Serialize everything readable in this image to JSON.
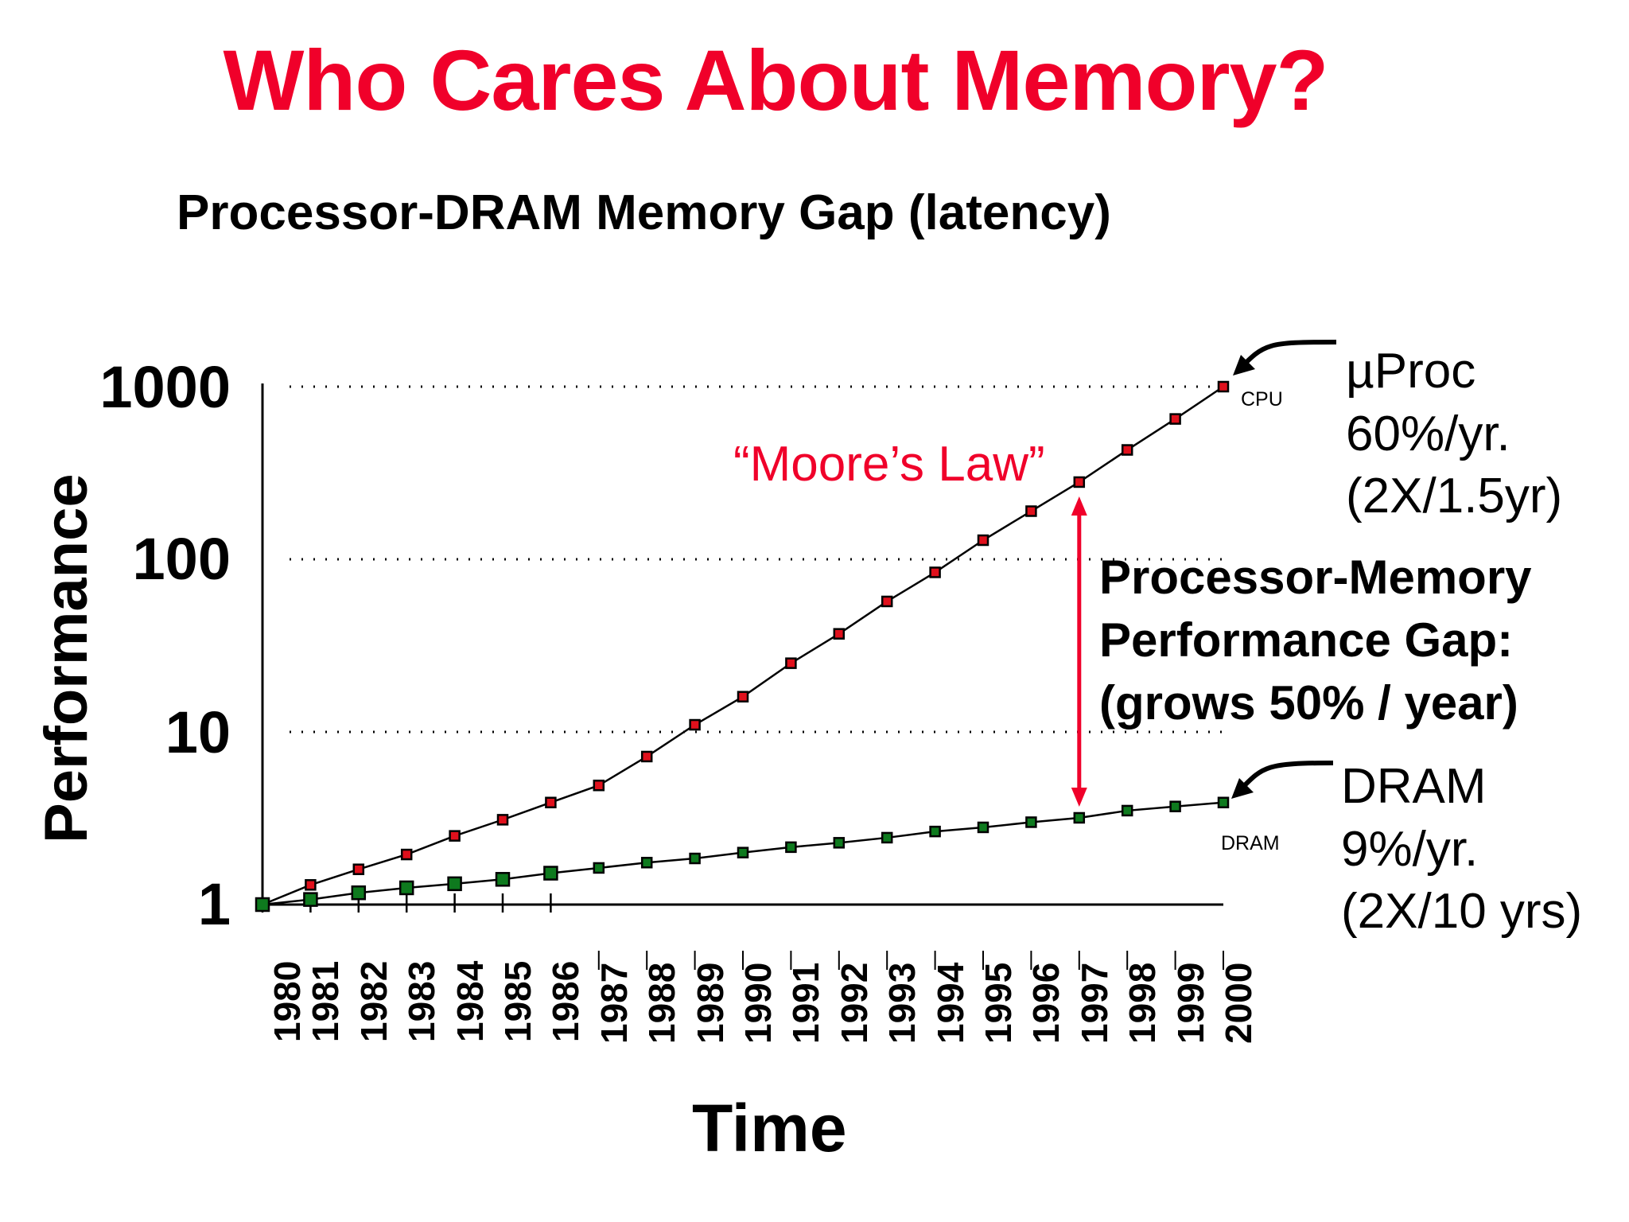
{
  "slide": {
    "title": "Who Cares About Memory?",
    "subtitle": "Processor-DRAM Memory Gap (latency)",
    "colors": {
      "title": "#f0002a",
      "cpu_marker": "#e0101c",
      "dram_marker": "#0e7a1e",
      "gap_arrow": "#f0002a"
    }
  },
  "axes": {
    "ylabel": "Performance",
    "xlabel": "Time",
    "yticks": [
      "1000",
      "100",
      "10",
      "1"
    ]
  },
  "annotations": {
    "moores_law": "“Moore’s Law”",
    "cpu_tag": "CPU",
    "dram_tag": "DRAM",
    "uproc": [
      "µProc",
      "60%/yr.",
      "(2X/1.5yr)"
    ],
    "dram": [
      "DRAM",
      "9%/yr.",
      "(2X/10 yrs)"
    ],
    "gap": [
      "Processor-Memory",
      "Performance Gap:",
      "(grows 50% / year)"
    ]
  },
  "chart_data": {
    "type": "line",
    "title": "Processor-DRAM Memory Gap (latency)",
    "xlabel": "Time",
    "ylabel": "Performance",
    "yscale": "log",
    "ylim": [
      1,
      1000
    ],
    "yticks": [
      1,
      10,
      100,
      1000
    ],
    "grid": "dotted horizontal at 10, 100, 1000",
    "legend": "none (inline labels CPU / DRAM)",
    "x": [
      1980,
      1981,
      1982,
      1983,
      1984,
      1985,
      1986,
      1987,
      1988,
      1989,
      1990,
      1991,
      1992,
      1993,
      1994,
      1995,
      1996,
      1997,
      1998,
      1999,
      2000
    ],
    "series": [
      {
        "name": "CPU (µProc, 60%/yr)",
        "color": "#e0101c",
        "values": [
          1,
          1.3,
          1.6,
          1.95,
          2.5,
          3.1,
          3.9,
          4.9,
          7.2,
          11,
          16,
          25,
          37,
          57,
          84,
          129,
          190,
          280,
          430,
          650,
          1000
        ]
      },
      {
        "name": "DRAM (9%/yr)",
        "color": "#0e7a1e",
        "values": [
          1,
          1.07,
          1.17,
          1.25,
          1.32,
          1.4,
          1.52,
          1.63,
          1.75,
          1.85,
          2.0,
          2.15,
          2.28,
          2.44,
          2.65,
          2.8,
          3.0,
          3.18,
          3.5,
          3.7,
          3.9
        ]
      }
    ],
    "annotations": [
      "“Moore’s Law”",
      "Processor-Memory Performance Gap: (grows 50% / year)",
      "µProc 60%/yr. (2X/1.5yr)",
      "DRAM 9%/yr. (2X/10 yrs)"
    ]
  }
}
